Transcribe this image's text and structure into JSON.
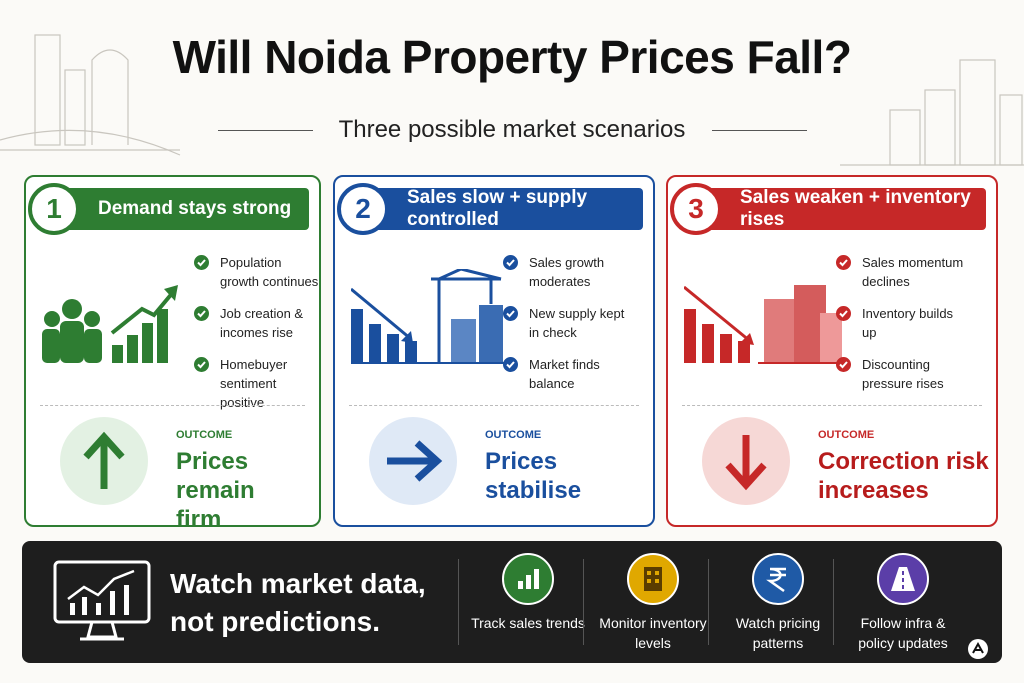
{
  "title": "Will Noida Property Prices Fall?",
  "subtitle": "Three possible market scenarios",
  "scenarios": [
    {
      "number": 1,
      "heading": "Demand stays strong",
      "points": [
        "Population growth continues",
        "Job creation & incomes rise",
        "Homebuyer sentiment positive"
      ],
      "outcome_label": "OUTCOME",
      "outcome": "Prices remain firm"
    },
    {
      "number": 2,
      "heading": "Sales slow + supply controlled",
      "points": [
        "Sales growth moderates",
        "New supply kept in check",
        "Market finds balance"
      ],
      "outcome_label": "OUTCOME",
      "outcome": "Prices stabilise"
    },
    {
      "number": 3,
      "heading": "Sales weaken + inventory rises",
      "points": [
        "Sales momentum declines",
        "Inventory builds up",
        "Discounting pressure rises"
      ],
      "outcome_label": "OUTCOME",
      "outcome": "Correction risk increases"
    }
  ],
  "footer": {
    "message": "Watch market data, not predictions.",
    "actions": [
      "Track sales trends",
      "Monitor inventory levels",
      "Watch pricing patterns",
      "Follow infra & policy updates"
    ]
  }
}
